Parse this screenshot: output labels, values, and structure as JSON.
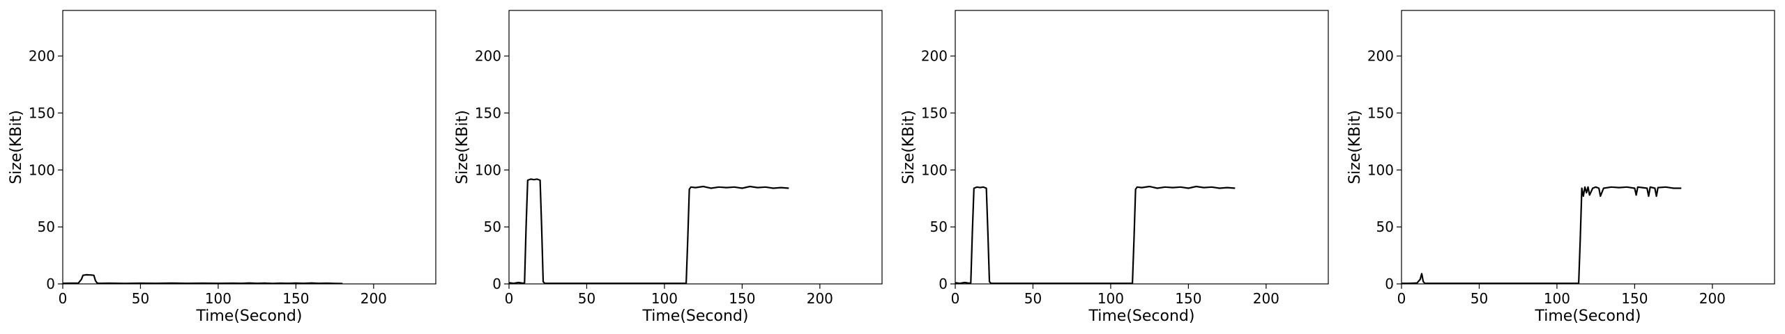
{
  "chart_data": [
    {
      "type": "line",
      "xlabel": "Time(Second)",
      "ylabel": "Size(KBit)",
      "xlim": [
        0,
        240
      ],
      "ylim": [
        0,
        240
      ],
      "xticks": [
        0,
        50,
        100,
        150,
        200
      ],
      "yticks": [
        0,
        50,
        100,
        150,
        200
      ],
      "grid": false,
      "series": [
        {
          "color": "#000000",
          "x": [
            0,
            5,
            10,
            12,
            13,
            15,
            18,
            20,
            21,
            22,
            23,
            30,
            40,
            50,
            60,
            70,
            80,
            90,
            100,
            110,
            115,
            120,
            125,
            130,
            135,
            140,
            145,
            150,
            155,
            160,
            165,
            170,
            175,
            180
          ],
          "y": [
            0.5,
            0.6,
            0.7,
            4,
            7.5,
            8,
            7.8,
            7.5,
            3,
            1,
            0.5,
            0.6,
            0.4,
            0.6,
            0.5,
            0.7,
            0.5,
            0.6,
            0.5,
            0.6,
            0.5,
            0.8,
            0.5,
            0.7,
            0.4,
            0.6,
            0.5,
            0.7,
            0.5,
            0.8,
            0.5,
            0.6,
            0.4,
            0.3
          ]
        }
      ]
    },
    {
      "type": "line",
      "xlabel": "Time(Second)",
      "ylabel": "Size(KBit)",
      "xlim": [
        0,
        240
      ],
      "ylim": [
        0,
        240
      ],
      "xticks": [
        0,
        50,
        100,
        150,
        200
      ],
      "yticks": [
        0,
        50,
        100,
        150,
        200
      ],
      "grid": false,
      "series": [
        {
          "color": "#000000",
          "x": [
            0,
            3,
            6,
            9,
            10,
            11,
            12,
            14,
            16,
            18,
            20,
            21,
            22,
            23,
            30,
            40,
            50,
            60,
            70,
            80,
            90,
            100,
            110,
            113,
            114,
            115,
            116,
            117,
            120,
            125,
            130,
            135,
            140,
            145,
            150,
            155,
            160,
            165,
            170,
            175,
            180
          ],
          "y": [
            1,
            0.5,
            1.2,
            0.6,
            1,
            50,
            91,
            92,
            91.5,
            92,
            91,
            50,
            2,
            0.5,
            0.5,
            0.5,
            0.5,
            0.5,
            0.5,
            0.5,
            0.5,
            0.5,
            0.5,
            0.5,
            0.5,
            40,
            83,
            85,
            84.5,
            85.5,
            84,
            85,
            84.5,
            85,
            84,
            85.5,
            84.5,
            85,
            84,
            84.5,
            84
          ]
        }
      ]
    },
    {
      "type": "line",
      "xlabel": "Time(Second)",
      "ylabel": "Size(KBit)",
      "xlim": [
        0,
        240
      ],
      "ylim": [
        0,
        240
      ],
      "xticks": [
        0,
        50,
        100,
        150,
        200
      ],
      "yticks": [
        0,
        50,
        100,
        150,
        200
      ],
      "grid": false,
      "series": [
        {
          "color": "#000000",
          "x": [
            0,
            3,
            6,
            9,
            10,
            11,
            12,
            14,
            16,
            18,
            20,
            21,
            22,
            23,
            30,
            40,
            50,
            60,
            70,
            80,
            90,
            100,
            110,
            113,
            114,
            115,
            116,
            117,
            120,
            125,
            130,
            135,
            140,
            145,
            150,
            155,
            160,
            165,
            170,
            175,
            180
          ],
          "y": [
            1,
            0.5,
            1.2,
            0.6,
            1,
            45,
            84,
            85,
            84.5,
            85,
            84,
            45,
            2,
            0.5,
            0.5,
            0.5,
            0.5,
            0.5,
            0.5,
            0.5,
            0.5,
            0.5,
            0.5,
            0.5,
            0.5,
            40,
            83,
            85,
            84.5,
            85.5,
            84,
            85,
            84.5,
            85,
            84,
            85.5,
            84.5,
            85,
            84,
            84.5,
            84
          ]
        }
      ]
    },
    {
      "type": "line",
      "xlabel": "Time(Second)",
      "ylabel": "Size(KBit)",
      "xlim": [
        0,
        240
      ],
      "ylim": [
        0,
        240
      ],
      "xticks": [
        0,
        50,
        100,
        150,
        200
      ],
      "yticks": [
        0,
        50,
        100,
        150,
        200
      ],
      "grid": false,
      "series": [
        {
          "color": "#000000",
          "x": [
            0,
            5,
            10,
            12,
            13,
            14,
            15,
            20,
            30,
            40,
            50,
            60,
            70,
            80,
            90,
            100,
            110,
            114,
            115,
            116,
            117,
            118,
            119,
            120,
            121,
            123,
            125,
            127,
            128,
            130,
            135,
            140,
            145,
            150,
            151,
            152,
            155,
            158,
            159,
            160,
            163,
            164,
            165,
            170,
            175,
            180
          ],
          "y": [
            0.5,
            0.5,
            0.8,
            4,
            9,
            2,
            0.5,
            0.5,
            0.5,
            0.5,
            0.5,
            0.5,
            0.5,
            0.5,
            0.5,
            0.5,
            0.5,
            0.5,
            40,
            84,
            77,
            85,
            80,
            85,
            78,
            84,
            85,
            84,
            77,
            84,
            85,
            84.5,
            85,
            84,
            78,
            85,
            84.5,
            84,
            77,
            85,
            84,
            77,
            84.5,
            85,
            84,
            84
          ]
        }
      ]
    }
  ]
}
